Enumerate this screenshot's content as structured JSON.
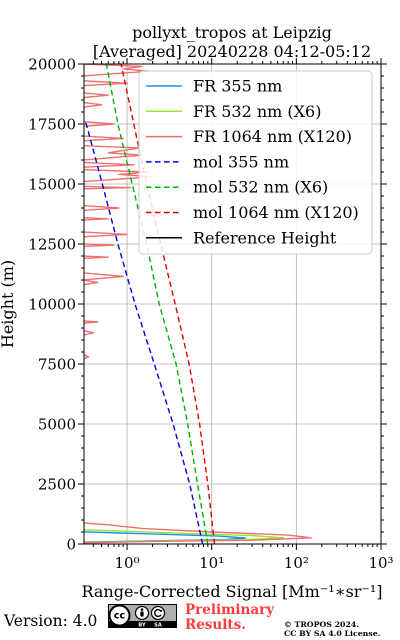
{
  "chart_data": {
    "type": "line",
    "title": "pollyxt_tropos at Leipzig",
    "subtitle": "[Averaged] 20240228 04:12-05:12",
    "xlabel": "Range-Corrected Signal [Mm⁻¹∗sr⁻¹]",
    "ylabel": "Height (m)",
    "xscale": "log",
    "xlim": [
      0.31,
      1000
    ],
    "ylim": [
      0,
      20000
    ],
    "grid": true,
    "legend_position": "top-right",
    "x_ticks": [
      {
        "value": 1,
        "label": "10⁰"
      },
      {
        "value": 10,
        "label": "10¹"
      },
      {
        "value": 100,
        "label": "10²"
      },
      {
        "value": 1000,
        "label": "10³"
      }
    ],
    "y_ticks": [
      {
        "value": 0,
        "label": "0"
      },
      {
        "value": 2500,
        "label": "2500"
      },
      {
        "value": 5000,
        "label": "5000"
      },
      {
        "value": 7500,
        "label": "7500"
      },
      {
        "value": 10000,
        "label": "10000"
      },
      {
        "value": 12500,
        "label": "12500"
      },
      {
        "value": 15000,
        "label": "15000"
      },
      {
        "value": 17500,
        "label": "17500"
      },
      {
        "value": 20000,
        "label": "20000"
      }
    ],
    "series": [
      {
        "name": "FR 355 nm",
        "color": "#1f90e6",
        "linestyle": "solid",
        "points": [
          [
            0.3,
            80
          ],
          [
            3,
            140
          ],
          [
            15,
            190
          ],
          [
            25,
            250
          ],
          [
            12,
            330
          ],
          [
            3,
            400
          ],
          [
            0.8,
            460
          ],
          [
            0.3,
            510
          ]
        ]
      },
      {
        "name": "FR 532 nm (X6)",
        "color": "#99e62e",
        "linestyle": "solid",
        "points": [
          [
            0.3,
            60
          ],
          [
            2,
            120
          ],
          [
            25,
            180
          ],
          [
            70,
            260
          ],
          [
            30,
            350
          ],
          [
            4,
            450
          ],
          [
            0.8,
            540
          ],
          [
            0.3,
            590
          ]
        ]
      },
      {
        "name": "FR 1064 nm (X120)",
        "color": "#f07070",
        "linestyle": "solid",
        "points": [
          [
            0.3,
            40
          ],
          [
            2,
            110
          ],
          [
            30,
            160
          ],
          [
            150,
            260
          ],
          [
            80,
            370
          ],
          [
            10,
            500
          ],
          [
            1.5,
            650
          ],
          [
            0.6,
            800
          ],
          [
            0.3,
            880
          ],
          [
            0.3,
            7700
          ],
          [
            0.35,
            7800
          ],
          [
            0.3,
            7900
          ],
          [
            0.3,
            8700
          ],
          [
            0.4,
            8800
          ],
          [
            0.3,
            8900
          ],
          [
            0.3,
            9200
          ],
          [
            0.45,
            9250
          ],
          [
            0.3,
            9300
          ],
          [
            0.3,
            10800
          ],
          [
            0.45,
            10900
          ],
          [
            0.3,
            11000
          ],
          [
            0.9,
            11150
          ],
          [
            0.3,
            11300
          ],
          [
            0.3,
            11900
          ],
          [
            0.6,
            11950
          ],
          [
            0.3,
            12000
          ],
          [
            0.3,
            12400
          ],
          [
            0.7,
            12450
          ],
          [
            0.3,
            12500
          ],
          [
            0.3,
            12800
          ],
          [
            1.0,
            12900
          ],
          [
            0.3,
            13000
          ],
          [
            0.3,
            13500
          ],
          [
            0.6,
            13550
          ],
          [
            0.3,
            13600
          ],
          [
            0.3,
            13900
          ],
          [
            0.8,
            14000
          ],
          [
            0.3,
            14100
          ],
          [
            0.3,
            14800
          ],
          [
            1.1,
            14850
          ],
          [
            0.3,
            14900
          ],
          [
            0.3,
            15100
          ],
          [
            2.0,
            15300
          ],
          [
            0.8,
            15400
          ],
          [
            1.8,
            15500
          ],
          [
            0.3,
            15600
          ],
          [
            0.3,
            15700
          ],
          [
            1.2,
            15800
          ],
          [
            0.3,
            15900
          ],
          [
            0.3,
            16000
          ],
          [
            1.5,
            16200
          ],
          [
            0.6,
            16300
          ],
          [
            1.4,
            16500
          ],
          [
            0.3,
            16600
          ],
          [
            0.3,
            16800
          ],
          [
            0.9,
            16900
          ],
          [
            0.3,
            17000
          ],
          [
            0.3,
            17400
          ],
          [
            0.7,
            17500
          ],
          [
            0.3,
            17600
          ],
          [
            0.3,
            18200
          ],
          [
            0.5,
            18300
          ],
          [
            0.3,
            18400
          ],
          [
            0.3,
            18600
          ],
          [
            0.6,
            18700
          ],
          [
            0.3,
            18800
          ],
          [
            0.3,
            19100
          ],
          [
            1.0,
            19200
          ],
          [
            0.3,
            19300
          ],
          [
            0.3,
            19500
          ],
          [
            1.8,
            19700
          ],
          [
            0.9,
            19800
          ],
          [
            1.5,
            19900
          ],
          [
            0.3,
            20000
          ]
        ]
      },
      {
        "name": "mol 355 nm",
        "color": "#0000e0",
        "linestyle": "dashed",
        "points": [
          [
            7.8,
            0
          ],
          [
            5.5,
            2500
          ],
          [
            3.5,
            5000
          ],
          [
            2.1,
            7500
          ],
          [
            1.24,
            10000
          ],
          [
            0.78,
            12500
          ],
          [
            0.51,
            15000
          ],
          [
            0.33,
            17500
          ],
          [
            0.3,
            17700
          ]
        ]
      },
      {
        "name": "mol 532 nm (X6)",
        "color": "#00b300",
        "linestyle": "dashed",
        "points": [
          [
            9.0,
            0
          ],
          [
            6.8,
            2500
          ],
          [
            5.2,
            5000
          ],
          [
            3.8,
            7500
          ],
          [
            2.4,
            10000
          ],
          [
            1.7,
            12500
          ],
          [
            1.15,
            15000
          ],
          [
            0.78,
            17500
          ],
          [
            0.57,
            20000
          ]
        ]
      },
      {
        "name": "mol 1064 nm (X120)",
        "color": "#e00000",
        "linestyle": "dashed",
        "points": [
          [
            10.8,
            0
          ],
          [
            9.0,
            2500
          ],
          [
            7.2,
            5000
          ],
          [
            5.4,
            7500
          ],
          [
            3.7,
            10000
          ],
          [
            2.5,
            12500
          ],
          [
            1.7,
            15000
          ],
          [
            1.2,
            17500
          ],
          [
            0.85,
            20000
          ]
        ]
      },
      {
        "name": "Reference Height",
        "color": "#000000",
        "linestyle": "solid",
        "points": []
      }
    ]
  },
  "footer": {
    "version": "Version: 4.0",
    "logo": {
      "cc": "cc",
      "by": "BY",
      "sa": "SA"
    },
    "preliminary": [
      "Preliminary",
      "Results."
    ],
    "copyright": [
      "© TROPOS 2024.",
      "CC BY SA 4.0 License."
    ]
  }
}
